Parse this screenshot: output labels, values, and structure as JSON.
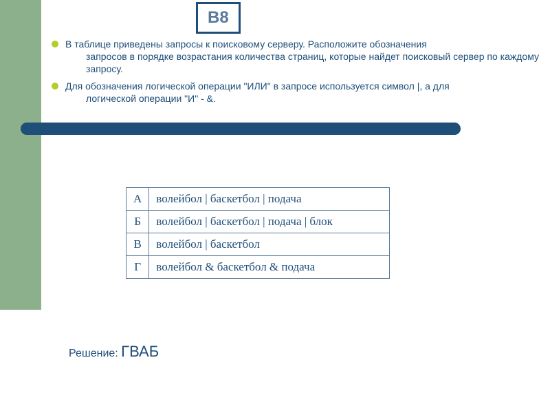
{
  "colors": {
    "sidebar": "#8cb08c",
    "badge_border": "#1f4e79",
    "badge_text": "#5a7a9a",
    "body_text": "#1f4e79",
    "bullet": "#b5cc2a",
    "hr_bar": "#1f4e79",
    "table_border": "#5a7a9a",
    "table_text": "#1f4e79"
  },
  "badge": {
    "label": "В8"
  },
  "paragraphs": {
    "p1_first": "В таблице приведены запросы к поисковому серверу. Расположите обозначения",
    "p1_rest": "запросов в порядке возрастания количества страниц, которые найдет поисковый сервер по  каждому запросу.",
    "p2_first": "Для обозначения логической операции \"ИЛИ\" в запросе используется символ |, а для",
    "p2_rest": "логической операции \"И\" - &."
  },
  "table": {
    "rows": [
      {
        "key": "А",
        "query": "волейбол | баскетбол | подача"
      },
      {
        "key": "Б",
        "query": "волейбол | баскетбол | подача | блок"
      },
      {
        "key": "В",
        "query": "волейбол | баскетбол"
      },
      {
        "key": "Г",
        "query": "волейбол & баскетбол & подача"
      }
    ]
  },
  "solution": {
    "label": "Решение: ",
    "answer": "ГВАБ"
  }
}
